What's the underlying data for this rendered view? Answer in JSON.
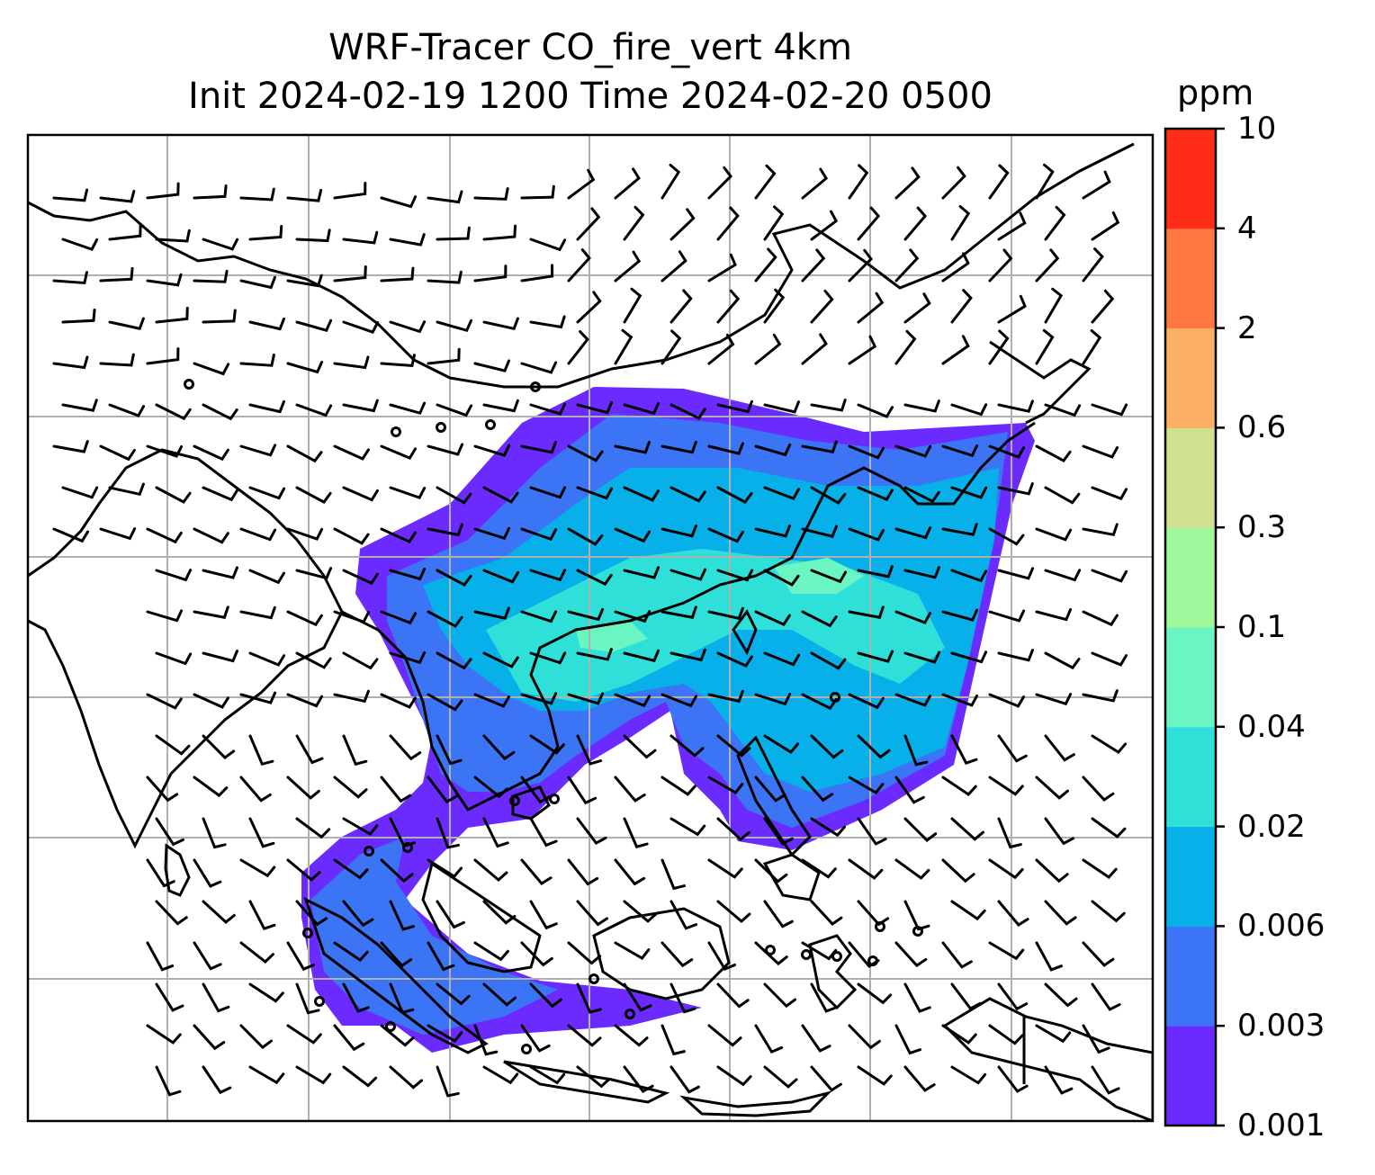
{
  "header": {
    "title_line1": "WRF-Tracer CO_fire_vert 4km",
    "title_line2": "Init 2024-02-19 1200 Time 2024-02-20 0500"
  },
  "colorbar": {
    "unit": "ppm",
    "levels": [
      "0.001",
      "0.003",
      "0.006",
      "0.02",
      "0.04",
      "0.1",
      "0.3",
      "0.6",
      "2",
      "4",
      "10"
    ],
    "colors": [
      "#6b2bff",
      "#3b74f4",
      "#08b0ea",
      "#2ee0d8",
      "#6af5c2",
      "#9ef79a",
      "#cfe08e",
      "#fbb065",
      "#ff7840",
      "#ff2d18"
    ]
  },
  "map": {
    "land_color": "#ffffff",
    "coastline_color": "#000000",
    "gridline_color": "#b0b0b0",
    "wind_barb_color": "#000000",
    "concentration_colors": {
      "low": "#6b2bff",
      "mid_low": "#3b74f4",
      "mid": "#08b0ea",
      "high": "#2ee0d8",
      "peak": "#6af5c2"
    }
  }
}
